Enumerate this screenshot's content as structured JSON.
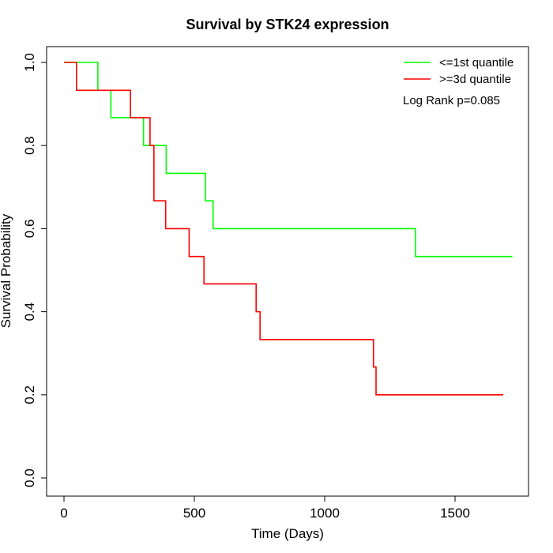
{
  "chart_data": {
    "type": "line",
    "subtype": "kaplan-meier-step",
    "title": "Survival by STK24 expression",
    "xlabel": "Time (Days)",
    "ylabel": "Survival Probability",
    "xlim": [
      0,
      1720
    ],
    "ylim": [
      0,
      1.0
    ],
    "x_ticks": [
      0,
      500,
      1000,
      1500
    ],
    "x_tick_labels": [
      "0",
      "500",
      "1000",
      "1500"
    ],
    "y_ticks": [
      0.0,
      0.2,
      0.4,
      0.6,
      0.8,
      1.0
    ],
    "y_tick_labels": [
      "0.0",
      "0.2",
      "0.4",
      "0.6",
      "0.8",
      "1.0"
    ],
    "grid": false,
    "legend_position": "top-right",
    "annotation": "Log Rank p=0.085",
    "series": [
      {
        "name": "<=1st quantile",
        "color": "#00ff00",
        "x": [
          0,
          130,
          180,
          305,
          392,
          543,
          572,
          1348,
          1720
        ],
        "y": [
          1.0,
          0.933,
          0.867,
          0.8,
          0.733,
          0.667,
          0.6,
          0.533,
          0.533
        ]
      },
      {
        "name": ">=3d quantile",
        "color": "#ff0000",
        "x": [
          0,
          48,
          255,
          330,
          345,
          390,
          480,
          537,
          737,
          752,
          1187,
          1197,
          1685
        ],
        "y": [
          1.0,
          0.933,
          0.867,
          0.8,
          0.667,
          0.6,
          0.533,
          0.467,
          0.4,
          0.333,
          0.267,
          0.2,
          0.2
        ]
      }
    ]
  }
}
